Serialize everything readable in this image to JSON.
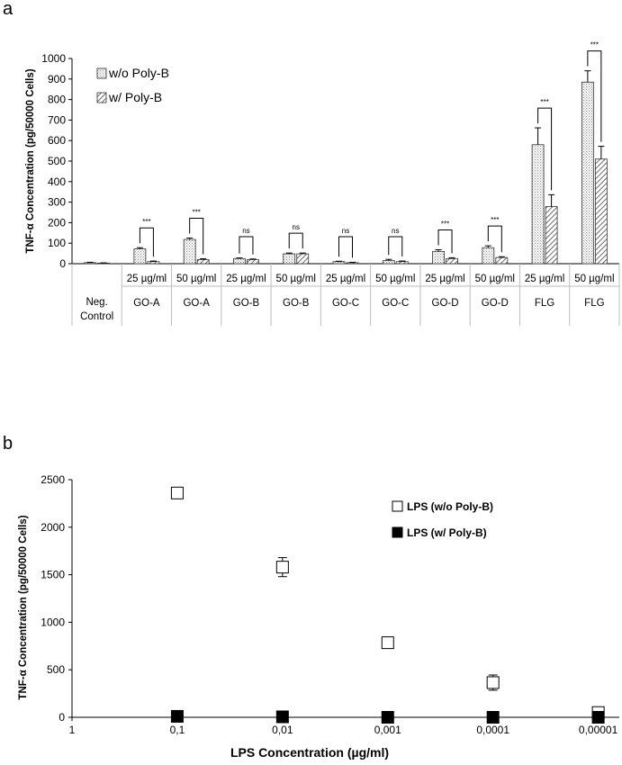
{
  "chart_data": [
    {
      "panel": "a",
      "type": "bar",
      "ylabel": "TNF-α Concentration (pg/50000 Cells)",
      "ylim": [
        0,
        1000
      ],
      "yticks": [
        "0",
        "100",
        "200",
        "300",
        "400",
        "500",
        "600",
        "700",
        "800",
        "900",
        "1000"
      ],
      "grid": false,
      "legend_position": "top-left",
      "categories": [
        {
          "dose": "",
          "material": "Neg. Control"
        },
        {
          "dose": "25 µg/ml",
          "material": "GO-A"
        },
        {
          "dose": "50 µg/ml",
          "material": "GO-A"
        },
        {
          "dose": "25 µg/ml",
          "material": "GO-B"
        },
        {
          "dose": "50 µg/ml",
          "material": "GO-B"
        },
        {
          "dose": "25 µg/ml",
          "material": "GO-C"
        },
        {
          "dose": "50 µg/ml",
          "material": "GO-C"
        },
        {
          "dose": "25 µg/ml",
          "material": "GO-D"
        },
        {
          "dose": "50 µg/ml",
          "material": "GO-D"
        },
        {
          "dose": "25 µg/ml",
          "material": "FLG"
        },
        {
          "dose": "50 µg/ml",
          "material": "FLG"
        }
      ],
      "series": [
        {
          "name": "w/o Poly-B",
          "pattern": "dots",
          "values": [
            5,
            72,
            118,
            25,
            48,
            10,
            15,
            60,
            78,
            580,
            885
          ],
          "errors": [
            2,
            6,
            7,
            3,
            4,
            2,
            6,
            8,
            9,
            82,
            55
          ]
        },
        {
          "name": "w/ Poly-B",
          "pattern": "hatch",
          "values": [
            3,
            10,
            20,
            20,
            48,
            5,
            10,
            25,
            30,
            278,
            510
          ],
          "errors": [
            1,
            3,
            4,
            3,
            4,
            2,
            3,
            4,
            4,
            58,
            62
          ]
        }
      ],
      "significance": [
        "",
        "***",
        "***",
        "ns",
        "ns",
        "ns",
        "ns",
        "***",
        "***",
        "***",
        "***"
      ]
    },
    {
      "panel": "b",
      "type": "scatter",
      "xlabel": "LPS Concentration (µg/ml)",
      "ylabel": "TNF-α Concentration (pg/50000 Cells)",
      "ylim": [
        0,
        2500
      ],
      "yticks": [
        "0",
        "500",
        "1000",
        "1500",
        "2000",
        "2500"
      ],
      "xticks": [
        "1",
        "0,1",
        "0,01",
        "0,001",
        "0,0001",
        "0,00001"
      ],
      "grid": false,
      "legend_position": "right",
      "series": [
        {
          "name": "LPS (w/o Poly-B)",
          "marker": "open-square",
          "x": [
            "0,1",
            "0,01",
            "0,001",
            "0,0001",
            "0,00001"
          ],
          "values": [
            2360,
            1580,
            785,
            365,
            50
          ],
          "errors": [
            0,
            100,
            0,
            80,
            0
          ]
        },
        {
          "name": "LPS (w/ Poly-B)",
          "marker": "filled-square",
          "x": [
            "0,1",
            "0,01",
            "0,001",
            "0,0001",
            "0,00001"
          ],
          "values": [
            10,
            5,
            0,
            0,
            0
          ],
          "errors": [
            0,
            0,
            0,
            0,
            0
          ]
        }
      ]
    }
  ]
}
